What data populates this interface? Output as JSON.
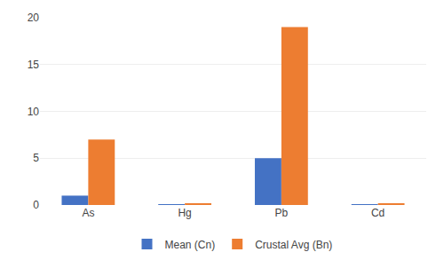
{
  "chart_data": {
    "type": "bar",
    "categories": [
      "As",
      "Hg",
      "Pb",
      "Cd"
    ],
    "series": [
      {
        "name": "Mean (Cn)",
        "color": "#4472C4",
        "values": [
          1.0,
          0.05,
          5.0,
          0.05
        ]
      },
      {
        "name": "Crustal Avg (Bn)",
        "color": "#ED7D31",
        "values": [
          7.0,
          0.1,
          19.0,
          0.1
        ]
      }
    ],
    "ylim": [
      0,
      20
    ],
    "yticks": [
      0,
      5,
      10,
      15,
      20
    ],
    "grid": true,
    "legend": "bottom"
  }
}
